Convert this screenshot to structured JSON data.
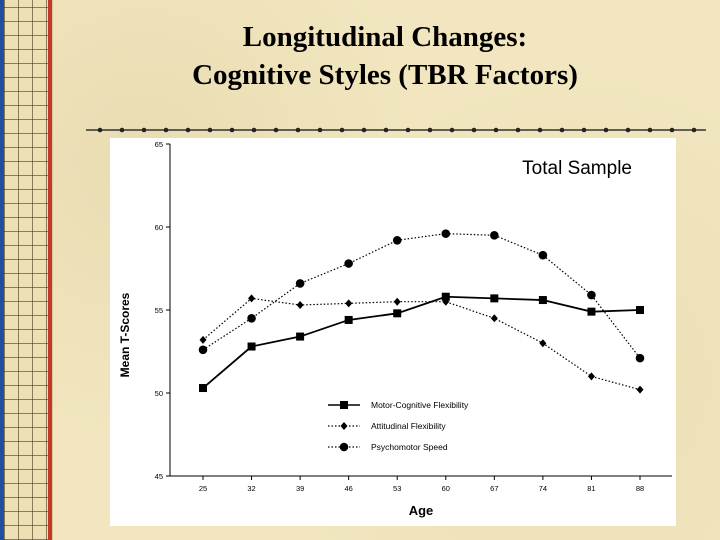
{
  "slide": {
    "title_line1": "Longitudinal Changes:",
    "title_line2": "Cognitive Styles (TBR Factors)"
  },
  "chart_data": {
    "type": "line",
    "title": "Total Sample",
    "xlabel": "Age",
    "ylabel": "Mean T-Scores",
    "x": [
      25,
      32,
      39,
      46,
      53,
      60,
      67,
      74,
      81,
      88
    ],
    "ylim": [
      45,
      65
    ],
    "yticks": [
      45,
      50,
      55,
      60,
      65
    ],
    "grid": false,
    "legend_position": "bottom-center",
    "series": [
      {
        "name": "Motor-Cognitive Flexibility",
        "line": "solid",
        "marker": "square",
        "values": [
          50.3,
          52.8,
          53.4,
          54.4,
          54.8,
          55.8,
          55.7,
          55.6,
          54.9,
          55.0
        ]
      },
      {
        "name": "Attitudinal Flexibility",
        "line": "dotted",
        "marker": "diamond",
        "values": [
          53.2,
          55.7,
          55.3,
          55.4,
          55.5,
          55.5,
          54.5,
          53.0,
          51.0,
          50.2
        ]
      },
      {
        "name": "Psychomotor Speed",
        "line": "dotted",
        "marker": "circle",
        "values": [
          52.6,
          54.5,
          56.6,
          57.8,
          59.2,
          59.6,
          59.5,
          58.3,
          55.9,
          52.1
        ]
      }
    ]
  },
  "colors": {
    "background": "#f1e6bf",
    "ink": "#000000",
    "binding_stripe_red": "#c0392b",
    "binding_stripe_blue": "#1f4fa3"
  }
}
